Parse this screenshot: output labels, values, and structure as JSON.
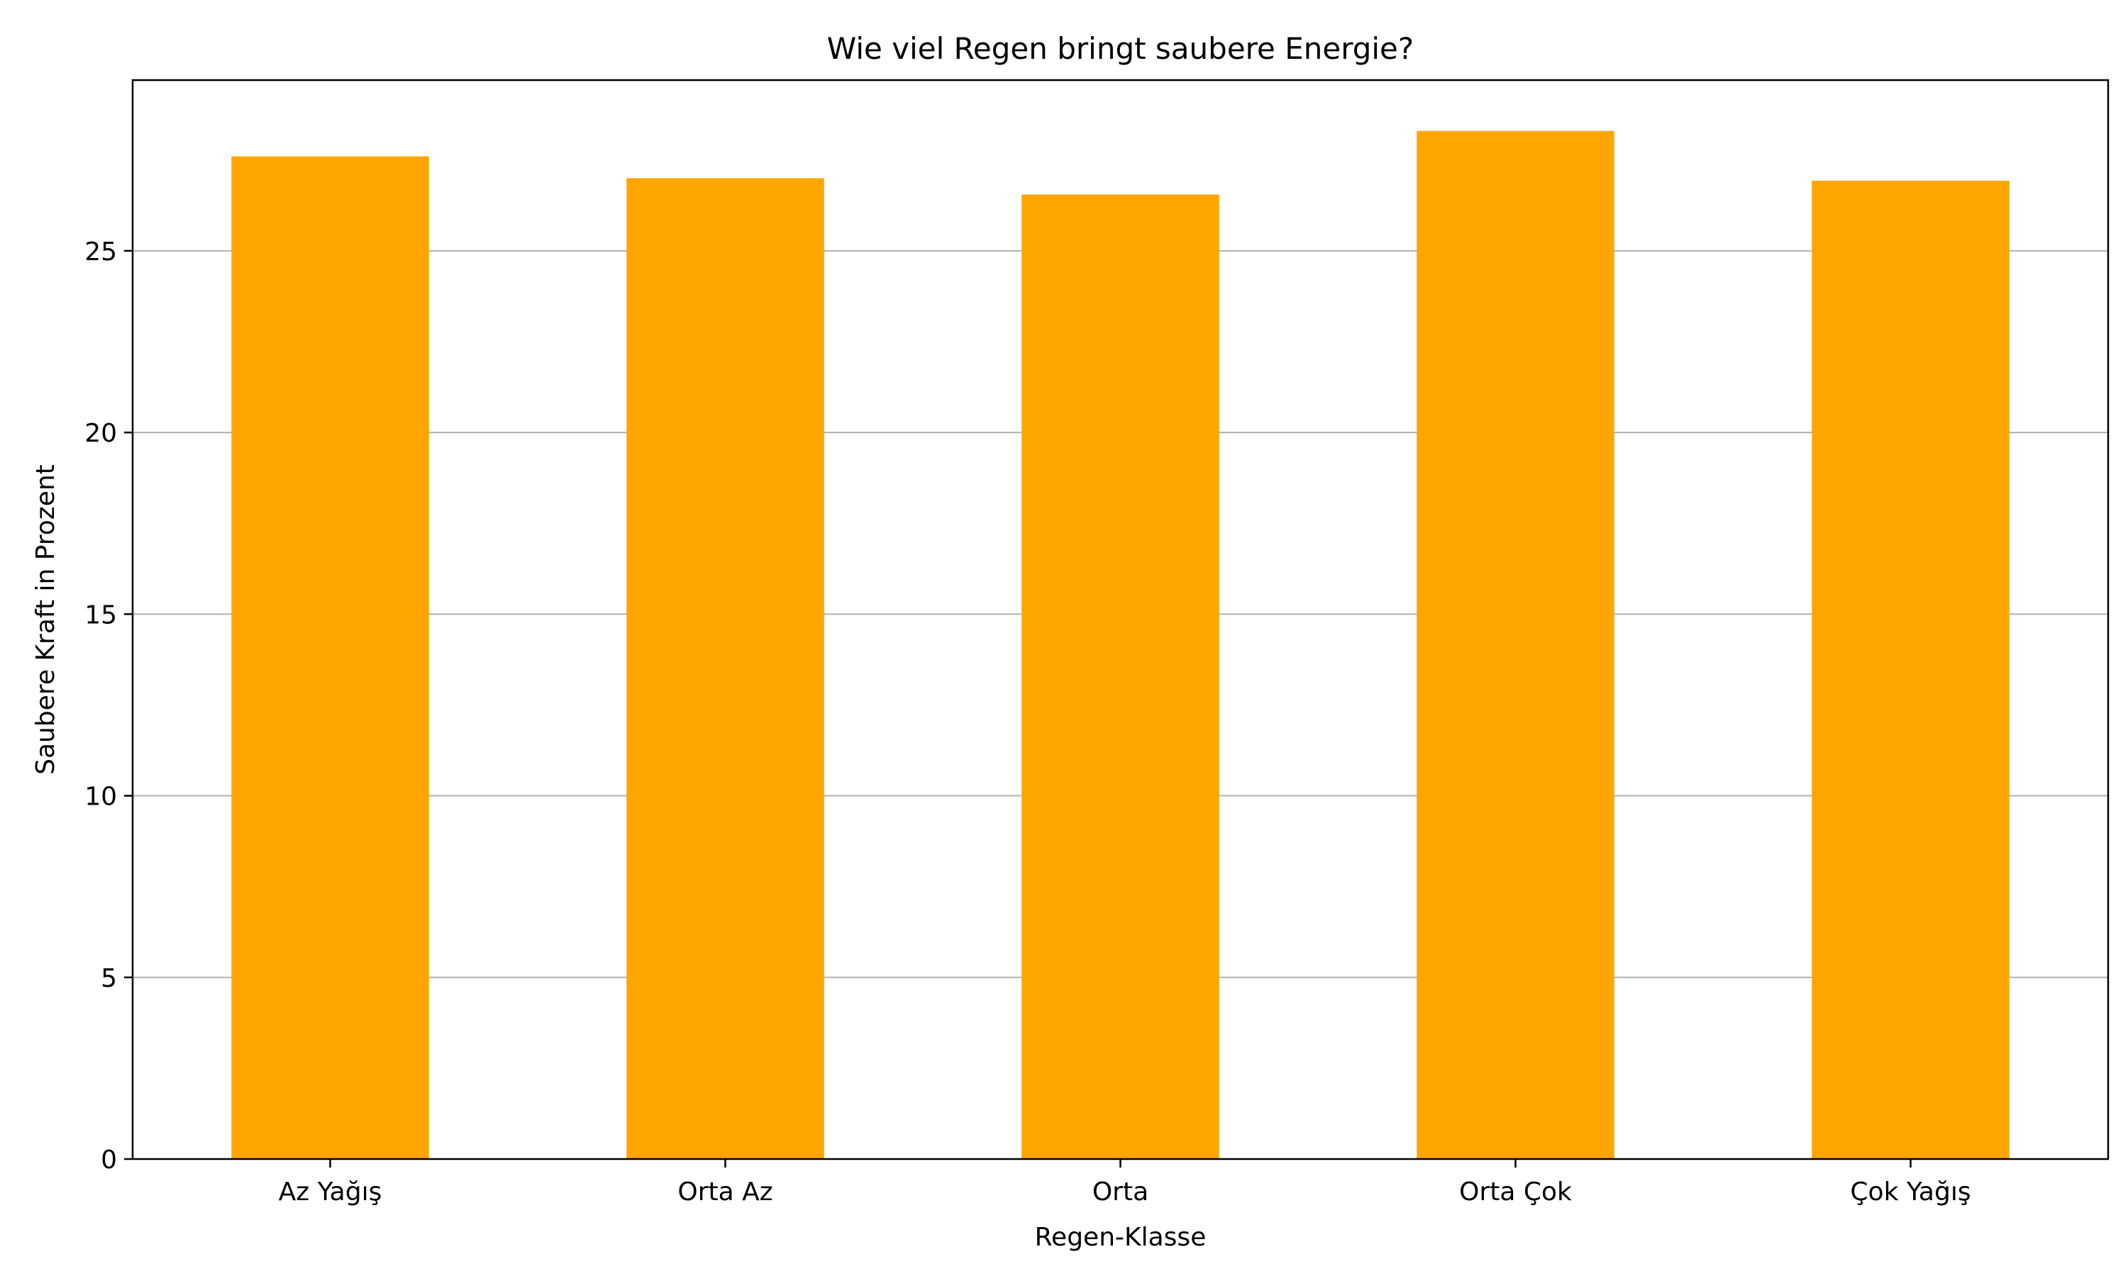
{
  "chart_data": {
    "type": "bar",
    "title": "Wie viel Regen bringt saubere Energie?",
    "xlabel": "Regen-Klasse",
    "ylabel": "Saubere Kraft in Prozent",
    "categories": [
      "Az Yağış",
      "Orta Az",
      "Orta",
      "Orta Çok",
      "Çok Yağış"
    ],
    "values": [
      27.6,
      27.0,
      26.55,
      28.3,
      26.93
    ],
    "ylim": [
      0,
      29.7
    ],
    "yticks": [
      0,
      5,
      10,
      15,
      20,
      25
    ],
    "grid": "y",
    "bar_color": "#ffa500",
    "grid_color": "#b0b0b0"
  }
}
